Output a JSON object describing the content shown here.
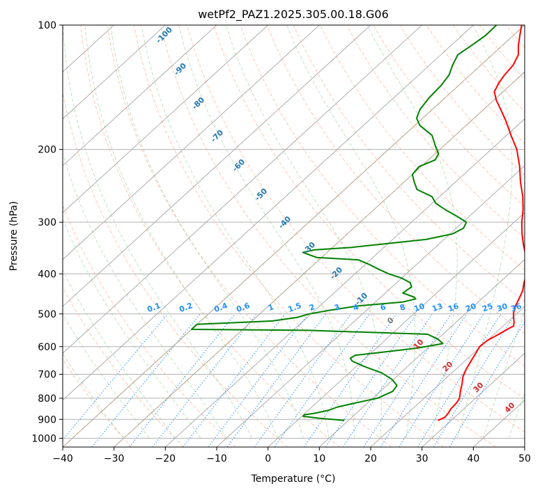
{
  "chart_data": {
    "type": "line",
    "subtype": "skew-T log-P diagram",
    "title": "wetPf2_PAZ1.2025.305.00.18.G06",
    "xlabel": "Temperature (°C)",
    "ylabel": "Pressure (hPa)",
    "xlim": [
      -40,
      50
    ],
    "ylim": [
      1050,
      100
    ],
    "x_ticks": [
      "−40",
      "−30",
      "−20",
      "−10",
      "0",
      "10",
      "20",
      "30",
      "40",
      "50"
    ],
    "y_ticks": [
      {
        "p": 100,
        "label": "100"
      },
      {
        "p": 200,
        "label": "200"
      },
      {
        "p": 300,
        "label": "300"
      },
      {
        "p": 400,
        "label": "400"
      },
      {
        "p": 500,
        "label": "500"
      },
      {
        "p": 600,
        "label": "600"
      },
      {
        "p": 700,
        "label": "700"
      },
      {
        "p": 800,
        "label": "800"
      },
      {
        "p": 900,
        "label": "900"
      },
      {
        "p": 1000,
        "label": "1000"
      }
    ],
    "grid": true,
    "colors": {
      "temperature": "#ff0000",
      "dewpoint": "#008000",
      "isotherm": "#999999",
      "dry_adiabat": "#ff7f50",
      "moist_adiabat": "#6fbf6f",
      "mixing_ratio": "#1e90ff",
      "dry_label": "#d62728",
      "moist_label": "#1f77b4",
      "special_isotherm": "#c8a67a"
    },
    "series": [
      {
        "name": "Temperature",
        "points": [
          [
            905,
            27.4
          ],
          [
            890,
            28.1
          ],
          [
            870,
            27.9
          ],
          [
            850,
            27.5
          ],
          [
            820,
            27.3
          ],
          [
            800,
            26.9
          ],
          [
            770,
            25.6
          ],
          [
            740,
            24.4
          ],
          [
            710,
            23.0
          ],
          [
            680,
            22.0
          ],
          [
            650,
            21.2
          ],
          [
            620,
            20.4
          ],
          [
            600,
            19.8
          ],
          [
            580,
            20.0
          ],
          [
            560,
            20.9
          ],
          [
            545,
            21.5
          ],
          [
            535,
            22.0
          ],
          [
            525,
            21.4
          ],
          [
            500,
            19.4
          ],
          [
            480,
            18.2
          ],
          [
            460,
            17.3
          ],
          [
            440,
            16.3
          ],
          [
            420,
            14.8
          ],
          [
            400,
            13.4
          ],
          [
            380,
            11.4
          ],
          [
            360,
            9.2
          ],
          [
            340,
            6.6
          ],
          [
            320,
            4.0
          ],
          [
            300,
            1.5
          ],
          [
            280,
            -0.9
          ],
          [
            260,
            -3.8
          ],
          [
            240,
            -7.3
          ],
          [
            220,
            -10.8
          ],
          [
            200,
            -15.0
          ],
          [
            185,
            -19.1
          ],
          [
            170,
            -23.4
          ],
          [
            160,
            -26.7
          ],
          [
            152,
            -29.5
          ],
          [
            145,
            -31.7
          ],
          [
            138,
            -32.7
          ],
          [
            132,
            -33.3
          ],
          [
            125,
            -33.7
          ],
          [
            118,
            -34.9
          ],
          [
            112,
            -36.9
          ],
          [
            106,
            -38.7
          ],
          [
            100,
            -40.6
          ]
        ]
      },
      {
        "name": "Dewpoint",
        "points": [
          [
            905,
            9.2
          ],
          [
            895,
            4.0
          ],
          [
            885,
            0.3
          ],
          [
            877,
            0.2
          ],
          [
            870,
            1.9
          ],
          [
            855,
            4.0
          ],
          [
            840,
            5.0
          ],
          [
            820,
            7.8
          ],
          [
            800,
            10.9
          ],
          [
            770,
            12.4
          ],
          [
            745,
            12.0
          ],
          [
            720,
            9.7
          ],
          [
            695,
            6.4
          ],
          [
            670,
            1.5
          ],
          [
            650,
            -2.0
          ],
          [
            640,
            -2.9
          ],
          [
            630,
            -2.6
          ],
          [
            620,
            1.6
          ],
          [
            605,
            8.0
          ],
          [
            590,
            12.0
          ],
          [
            575,
            10.0
          ],
          [
            560,
            7.0
          ],
          [
            548,
            -17.0
          ],
          [
            545,
            -40.0
          ],
          [
            530,
            -40.0
          ],
          [
            520,
            -26.0
          ],
          [
            510,
            -22.0
          ],
          [
            500,
            -20.4
          ],
          [
            490,
            -17.2
          ],
          [
            478,
            -12.5
          ],
          [
            468,
            -4.7
          ],
          [
            460,
            -2.8
          ],
          [
            455,
            -3.6
          ],
          [
            445,
            -6.6
          ],
          [
            430,
            -6.2
          ],
          [
            420,
            -7.4
          ],
          [
            410,
            -9.9
          ],
          [
            400,
            -13.4
          ],
          [
            390,
            -16.3
          ],
          [
            380,
            -19.1
          ],
          [
            370,
            -22.3
          ],
          [
            365,
            -31.0
          ],
          [
            355,
            -34.7
          ],
          [
            350,
            -33.1
          ],
          [
            345,
            -26.2
          ],
          [
            330,
            -13.4
          ],
          [
            320,
            -9.5
          ],
          [
            310,
            -8.6
          ],
          [
            300,
            -9.3
          ],
          [
            290,
            -12.5
          ],
          [
            280,
            -16.0
          ],
          [
            270,
            -19.3
          ],
          [
            260,
            -21.5
          ],
          [
            250,
            -25.9
          ],
          [
            240,
            -28.0
          ],
          [
            230,
            -30.0
          ],
          [
            220,
            -30.4
          ],
          [
            212,
            -28.7
          ],
          [
            205,
            -29.3
          ],
          [
            195,
            -31.9
          ],
          [
            185,
            -34.5
          ],
          [
            175,
            -39.0
          ],
          [
            168,
            -41.2
          ],
          [
            160,
            -42.4
          ],
          [
            150,
            -43.1
          ],
          [
            140,
            -43.4
          ],
          [
            132,
            -44.1
          ],
          [
            125,
            -45.5
          ],
          [
            118,
            -46.7
          ],
          [
            112,
            -46.0
          ],
          [
            106,
            -45.4
          ],
          [
            100,
            -45.5
          ]
        ]
      }
    ],
    "dry_adiabat_labels": [
      "-100",
      "-90",
      "-80",
      "-70",
      "-60",
      "-50",
      "-40",
      "-30",
      "-20",
      "-10",
      "0",
      "10",
      "20",
      "30",
      "40"
    ],
    "mixing_ratio_labels": [
      "0.1",
      "0.2",
      "0.4",
      "0.6",
      "1",
      "1.5",
      "2",
      "3",
      "4",
      "6",
      "8",
      "10",
      "13",
      "16",
      "20",
      "25",
      "30",
      "36"
    ]
  }
}
